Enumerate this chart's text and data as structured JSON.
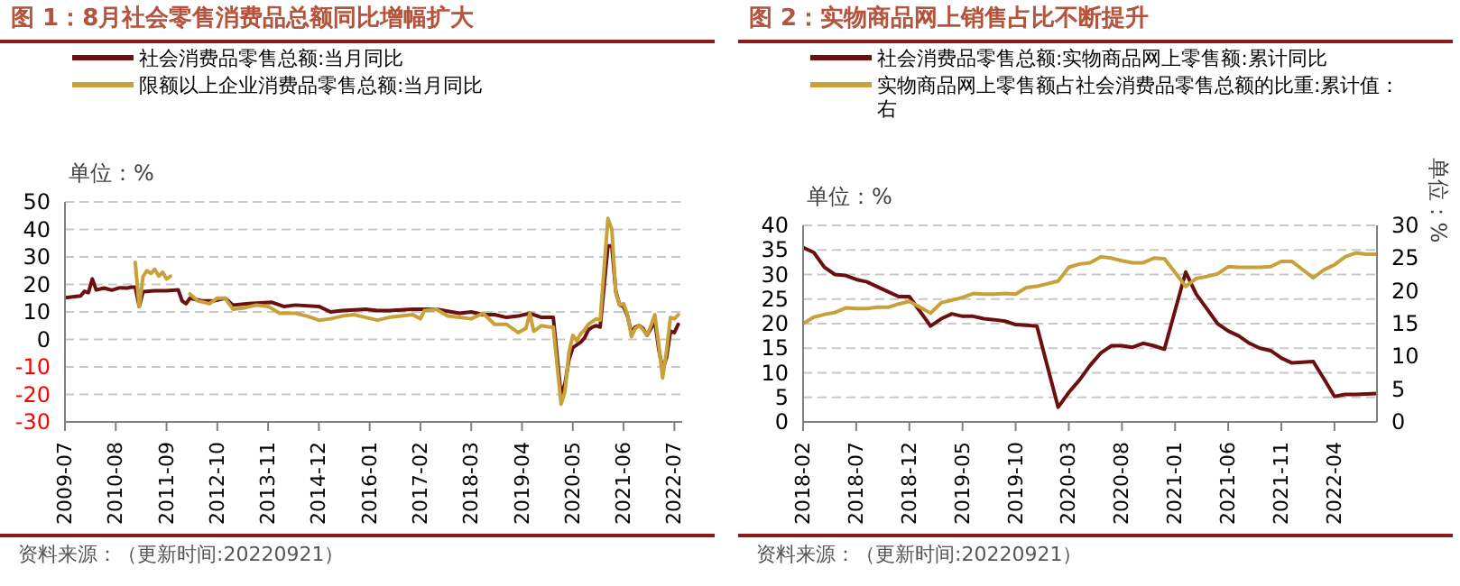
{
  "chart_data": [
    {
      "type": "line",
      "title": "图 1：8月社会零售消费品总额同比增幅扩大",
      "ylabel": "单位：%",
      "annotations": [
        "资料来源：（更新时间:20220921）"
      ],
      "xlim": [
        "2009-07",
        "2022-09"
      ],
      "xticks": [
        "2009-07",
        "2010-08",
        "2011-09",
        "2012-10",
        "2013-11",
        "2014-12",
        "2016-01",
        "2017-02",
        "2018-03",
        "2019-04",
        "2020-05",
        "2021-06",
        "2022-07"
      ],
      "ylim": [
        -30,
        50
      ],
      "yticks": [
        -30,
        -20,
        -10,
        0,
        10,
        20,
        30,
        40,
        50
      ],
      "grid": "y",
      "legend": "top",
      "series": [
        {
          "name": "社会消费品零售总额:当月同比",
          "color": "#6b0f0f",
          "x": [
            "2009-07",
            "2009-09",
            "2009-11",
            "2009-12",
            "2010-01",
            "2010-02",
            "2010-03",
            "2010-05",
            "2010-07",
            "2010-09",
            "2010-11",
            "2010-12",
            "2011-01",
            "2011-02",
            "2011-03",
            "2011-06",
            "2011-09",
            "2011-12",
            "2012-01",
            "2012-02",
            "2012-03",
            "2012-06",
            "2012-09",
            "2012-12",
            "2013-02",
            "2013-06",
            "2013-12",
            "2014-03",
            "2014-06",
            "2014-12",
            "2015-03",
            "2015-06",
            "2015-12",
            "2016-03",
            "2016-06",
            "2016-12",
            "2017-03",
            "2017-06",
            "2017-12",
            "2018-03",
            "2018-06",
            "2018-09",
            "2018-12",
            "2019-03",
            "2019-06",
            "2019-09",
            "2019-12",
            "2020-02",
            "2020-03",
            "2020-04",
            "2020-05",
            "2020-06",
            "2020-07",
            "2020-08",
            "2020-09",
            "2020-10",
            "2020-11",
            "2020-12",
            "2021-02",
            "2021-03",
            "2021-04",
            "2021-05",
            "2021-06",
            "2021-07",
            "2021-08",
            "2021-09",
            "2021-10",
            "2021-11",
            "2021-12",
            "2022-02",
            "2022-03",
            "2022-04",
            "2022-05",
            "2022-06",
            "2022-07",
            "2022-08"
          ],
          "values": [
            15.2,
            15.5,
            15.8,
            17.5,
            17,
            22,
            18,
            18.7,
            17.9,
            18.8,
            18.7,
            19,
            19,
            12,
            17.4,
            17.7,
            17.7,
            18,
            14,
            13,
            15,
            14,
            14,
            15,
            12.5,
            13,
            13.5,
            12,
            12.5,
            12,
            10,
            10.5,
            11,
            10.5,
            10.5,
            11,
            11,
            11,
            9.5,
            10,
            9,
            9,
            8,
            8.5,
            9.5,
            8,
            8,
            -20.5,
            -16,
            -7.5,
            -3,
            -2,
            -1,
            0.5,
            3.5,
            4.5,
            5,
            4.5,
            34,
            34,
            17.5,
            12.5,
            12,
            8.5,
            2.5,
            4.5,
            5,
            4,
            1.5,
            6.5,
            -3.5,
            -11,
            -6.5,
            3,
            2.5,
            5.5
          ]
        },
        {
          "name": "限额以上企业消费品零售总额:当月同比",
          "color": "#c9a13b",
          "x": [
            "2011-01",
            "2011-02",
            "2011-03",
            "2011-04",
            "2011-05",
            "2011-06",
            "2011-07",
            "2011-08",
            "2011-09",
            "2011-10",
            "2011-11",
            "2012-03",
            "2012-05",
            "2012-08",
            "2012-10",
            "2012-12",
            "2013-02",
            "2013-05",
            "2013-08",
            "2013-11",
            "2014-02",
            "2014-06",
            "2014-09",
            "2014-12",
            "2015-03",
            "2015-06",
            "2015-09",
            "2015-12",
            "2016-03",
            "2016-06",
            "2016-09",
            "2016-12",
            "2017-02",
            "2017-03",
            "2017-06",
            "2017-09",
            "2017-12",
            "2018-03",
            "2018-06",
            "2018-09",
            "2018-12",
            "2019-03",
            "2019-05",
            "2019-06",
            "2019-07",
            "2019-09",
            "2019-11",
            "2019-12",
            "2020-02",
            "2020-03",
            "2020-04",
            "2020-05",
            "2020-06",
            "2020-07",
            "2020-08",
            "2020-09",
            "2020-10",
            "2020-11",
            "2020-12",
            "2021-02",
            "2021-03",
            "2021-04",
            "2021-05",
            "2021-06",
            "2021-07",
            "2021-08",
            "2021-09",
            "2021-10",
            "2021-11",
            "2021-12",
            "2022-01",
            "2022-02",
            "2022-03",
            "2022-04",
            "2022-05",
            "2022-06",
            "2022-07",
            "2022-08"
          ],
          "values": [
            28,
            12,
            23,
            25,
            24,
            25.5,
            23,
            24.5,
            22,
            23,
            null,
            16.5,
            14,
            13,
            15,
            15,
            11,
            11.5,
            12.5,
            12,
            9.5,
            9.5,
            8.5,
            7,
            7.5,
            8.5,
            9,
            8,
            7,
            8,
            8.5,
            9,
            7.5,
            10.5,
            11,
            8.5,
            8,
            7.5,
            9.5,
            5.5,
            5.5,
            2.5,
            4,
            9.5,
            3,
            5,
            4.5,
            4.5,
            -23.5,
            -19,
            -5,
            1.5,
            -0.5,
            2,
            3.5,
            5.5,
            6.5,
            7.5,
            7,
            44,
            40,
            17,
            12.5,
            13,
            9,
            1,
            4,
            5,
            3.5,
            1.5,
            5,
            9,
            -2,
            -14,
            -4,
            8,
            7.5,
            9
          ]
        }
      ]
    },
    {
      "type": "line",
      "title": "图 2：实物商品网上销售占比不断提升",
      "ylabel": "单位：%",
      "y2label": "单位：%",
      "annotations": [
        "资料来源：（更新时间:20220921）"
      ],
      "xlim": [
        "2018-02",
        "2022-08"
      ],
      "xticks": [
        "2018-02",
        "2018-07",
        "2018-12",
        "2019-05",
        "2019-10",
        "2020-03",
        "2020-08",
        "2021-01",
        "2021-06",
        "2021-11",
        "2022-04"
      ],
      "ylim": [
        0,
        40
      ],
      "yticks": [
        0,
        5,
        10,
        15,
        20,
        25,
        30,
        35,
        40
      ],
      "y2lim": [
        0,
        30
      ],
      "y2ticks": [
        0,
        5,
        10,
        15,
        20,
        25,
        30
      ],
      "grid": "y",
      "legend": "top",
      "series": [
        {
          "name": "社会消费品零售总额:实物商品网上零售额:累计同比",
          "color": "#6b0f0f",
          "x": [
            "2018-02",
            "2018-03",
            "2018-04",
            "2018-05",
            "2018-06",
            "2018-07",
            "2018-08",
            "2018-09",
            "2018-10",
            "2018-11",
            "2018-12",
            "2019-02",
            "2019-03",
            "2019-04",
            "2019-05",
            "2019-06",
            "2019-07",
            "2019-08",
            "2019-09",
            "2019-10",
            "2019-11",
            "2019-12",
            "2020-02",
            "2020-03",
            "2020-04",
            "2020-05",
            "2020-06",
            "2020-07",
            "2020-08",
            "2020-09",
            "2020-10",
            "2020-11",
            "2020-12",
            "2021-02",
            "2021-03",
            "2021-04",
            "2021-05",
            "2021-06",
            "2021-07",
            "2021-08",
            "2021-09",
            "2021-10",
            "2021-11",
            "2021-12",
            "2022-02",
            "2022-03",
            "2022-04",
            "2022-05",
            "2022-06",
            "2022-07",
            "2022-08"
          ],
          "values": [
            35.5,
            34.5,
            31.5,
            30,
            29.8,
            29,
            28.5,
            27.5,
            26.5,
            25.5,
            25.5,
            19.5,
            21,
            22,
            21.5,
            21.5,
            21,
            20.8,
            20.5,
            19.8,
            19.7,
            19.5,
            3,
            6,
            8.5,
            11.5,
            14,
            15.5,
            15.5,
            15.2,
            16,
            15.5,
            14.8,
            30.5,
            26,
            23,
            20,
            18.5,
            17.5,
            16,
            15,
            14.5,
            13,
            12,
            12.3,
            8.8,
            5.2,
            5.6,
            5.6,
            5.7,
            5.8
          ]
        },
        {
          "name": "实物商品网上零售额占社会消费品零售总额的比重:累计值：右",
          "color": "#c9a13b",
          "axis": "y2",
          "x": [
            "2018-02",
            "2018-03",
            "2018-04",
            "2018-05",
            "2018-06",
            "2018-07",
            "2018-08",
            "2018-09",
            "2018-10",
            "2018-11",
            "2018-12",
            "2019-02",
            "2019-03",
            "2019-04",
            "2019-05",
            "2019-06",
            "2019-07",
            "2019-08",
            "2019-09",
            "2019-10",
            "2019-11",
            "2019-12",
            "2020-02",
            "2020-03",
            "2020-04",
            "2020-05",
            "2020-06",
            "2020-07",
            "2020-08",
            "2020-09",
            "2020-10",
            "2020-11",
            "2020-12",
            "2021-02",
            "2021-03",
            "2021-04",
            "2021-05",
            "2021-06",
            "2021-07",
            "2021-08",
            "2021-09",
            "2021-10",
            "2021-11",
            "2021-12",
            "2022-02",
            "2022-03",
            "2022-04",
            "2022-05",
            "2022-06",
            "2022-07",
            "2022-08"
          ],
          "values": [
            15,
            16,
            16.4,
            16.7,
            17.4,
            17.3,
            17.3,
            17.5,
            17.5,
            18,
            18.4,
            16.6,
            18.2,
            18.6,
            19,
            19.6,
            19.5,
            19.5,
            19.6,
            19.5,
            20.5,
            20.7,
            21.5,
            23.6,
            24.1,
            24.3,
            25.2,
            25,
            24.6,
            24.3,
            24.3,
            25,
            24.9,
            20.7,
            21.9,
            22.2,
            22.6,
            23.7,
            23.6,
            23.6,
            23.6,
            23.7,
            24.5,
            24.5,
            22,
            23.2,
            24,
            25.2,
            25.8,
            25.6,
            25.6
          ]
        }
      ]
    }
  ]
}
